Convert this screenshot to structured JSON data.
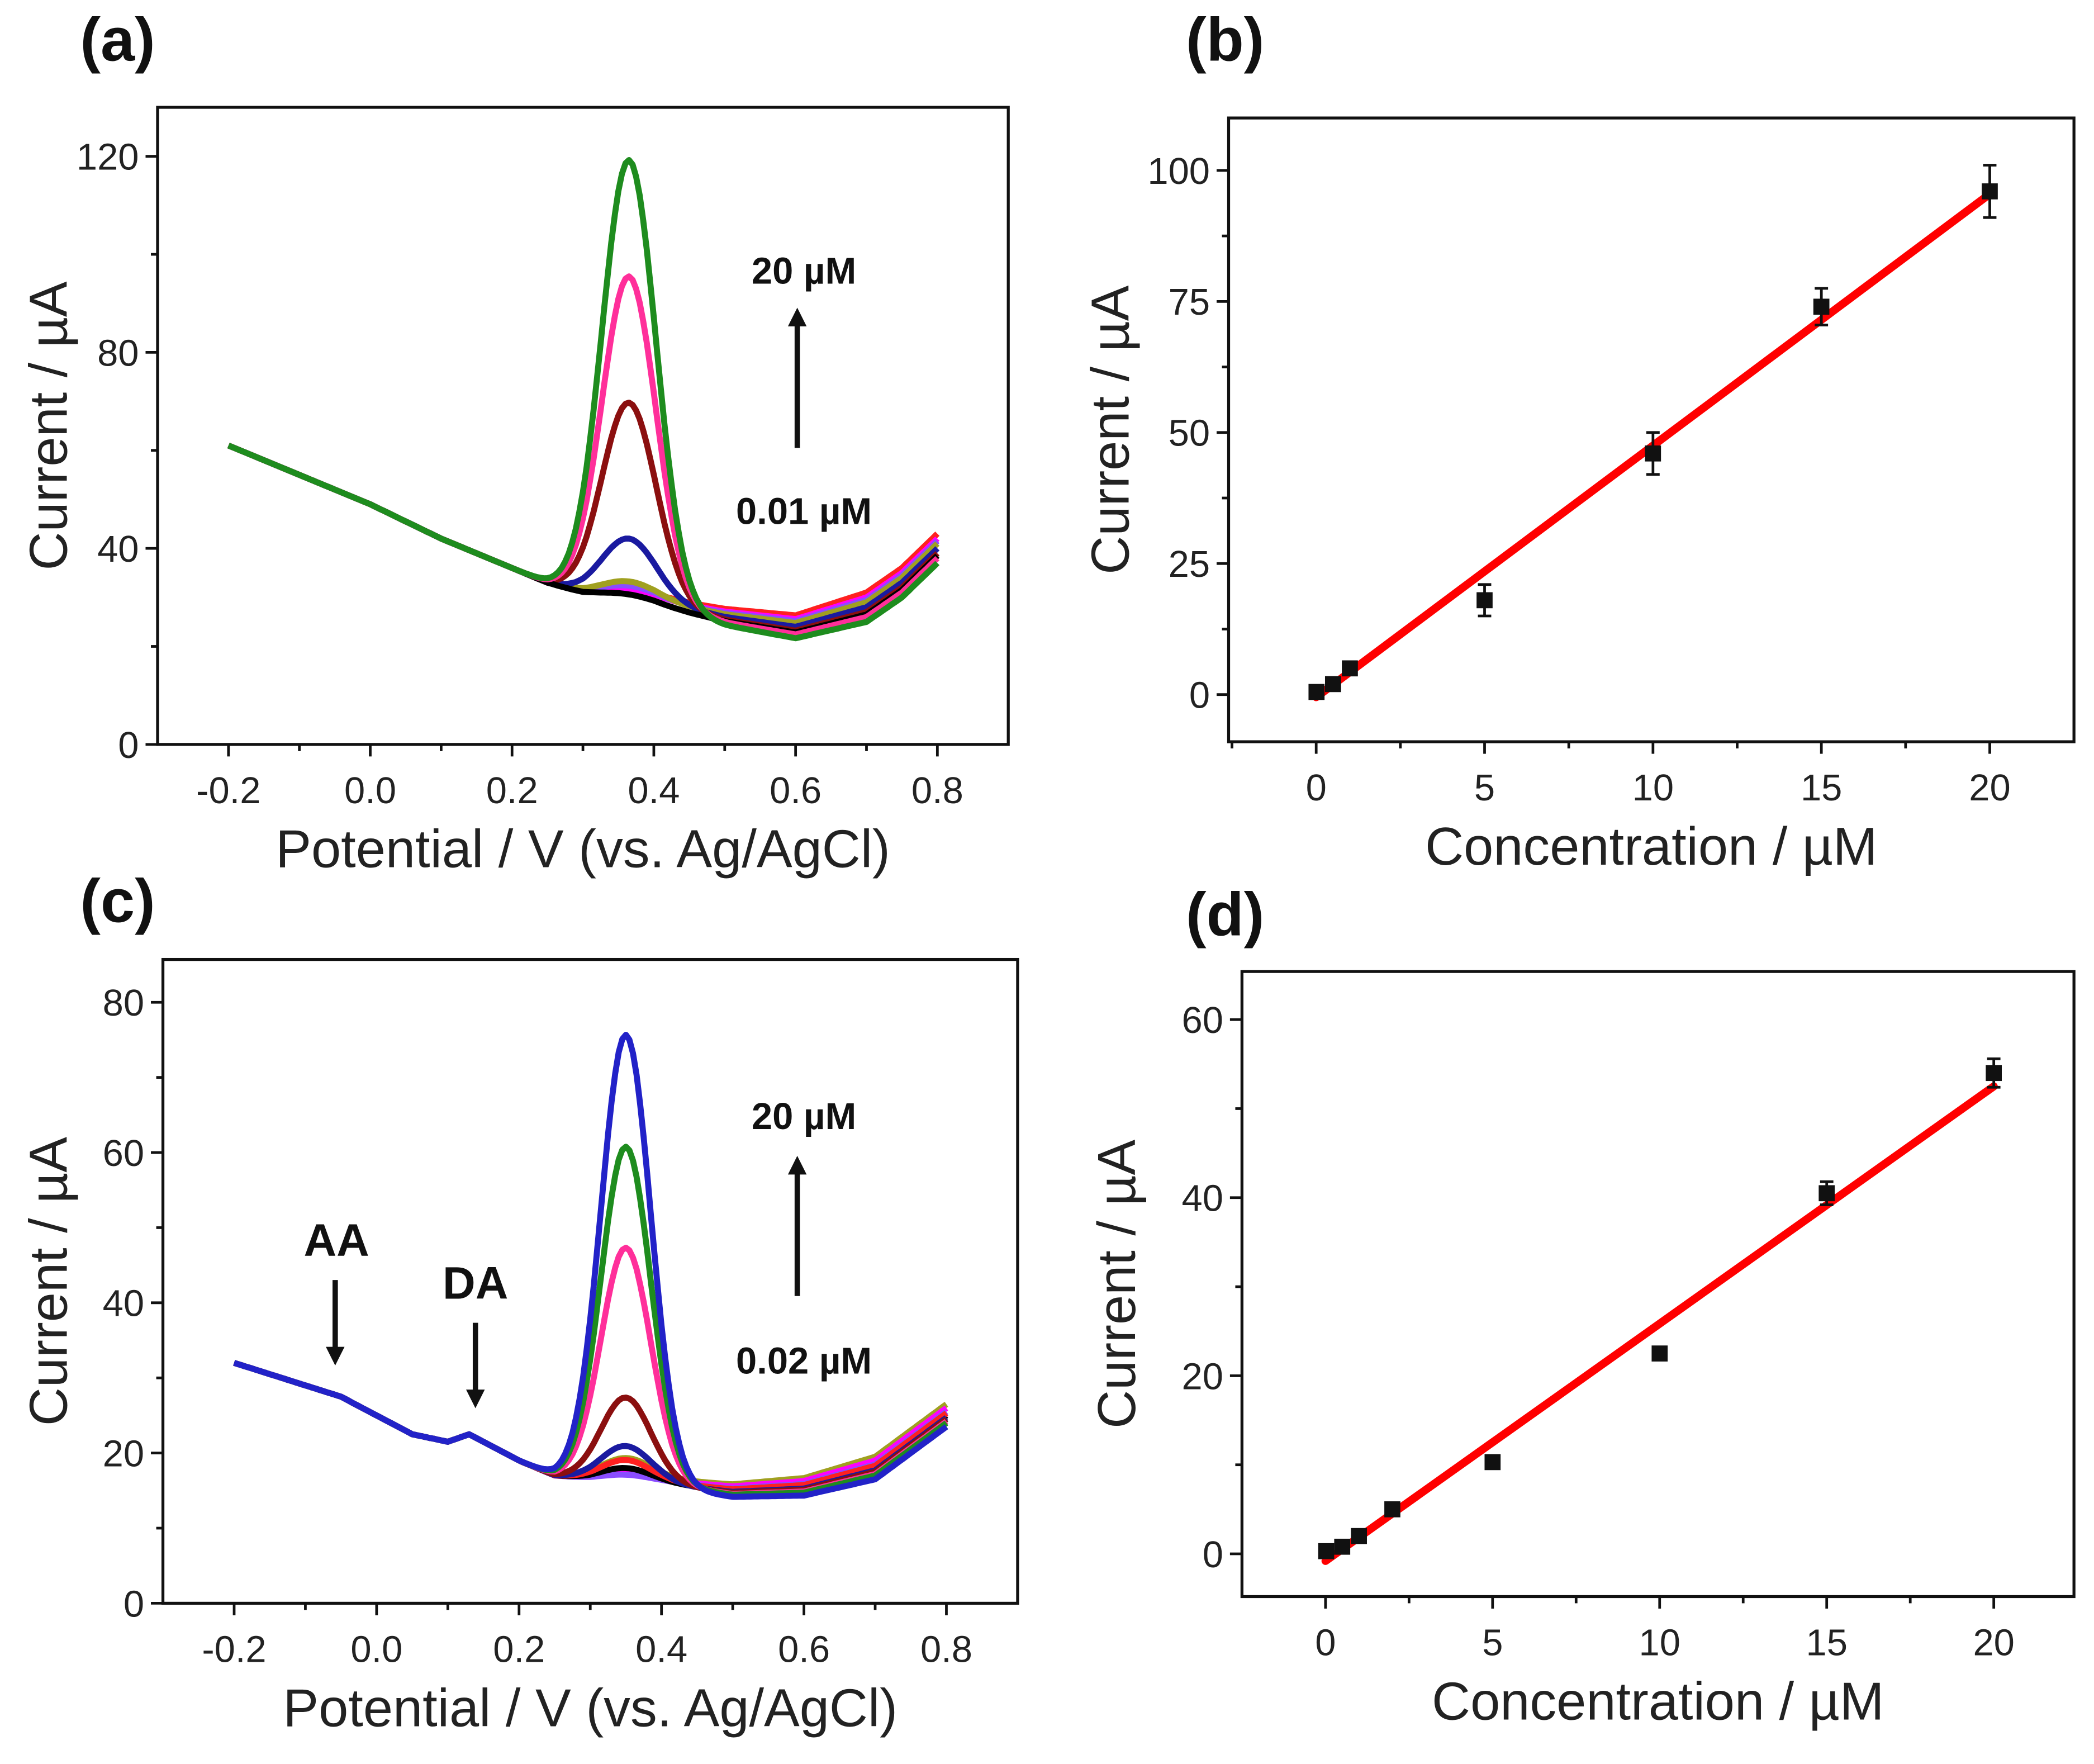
{
  "chart_data": [
    {
      "id": "a",
      "panel_label": "(a)",
      "type": "line",
      "xlabel": "Potential / V (vs. Ag/AgCl)",
      "ylabel": "Current / µA",
      "xlim": [
        -0.3,
        0.9
      ],
      "ylim": [
        0,
        130
      ],
      "xticks": [
        -0.2,
        0.0,
        0.2,
        0.4,
        0.6,
        0.8
      ],
      "xtick_labels": [
        "-0.2",
        "0.0",
        "0.2",
        "0.4",
        "0.6",
        "0.8"
      ],
      "yticks": [
        0,
        40,
        80,
        120
      ],
      "ytick_labels": [
        "0",
        "40",
        "80",
        "120"
      ],
      "baseline": {
        "x": [
          -0.2,
          -0.1,
          0.0,
          0.1,
          0.2,
          0.25,
          0.3,
          0.4,
          0.5,
          0.6,
          0.7,
          0.75,
          0.8
        ],
        "y": [
          61,
          55,
          49,
          42,
          36,
          33,
          31,
          29,
          26,
          24,
          28,
          33,
          40
        ]
      },
      "peak_x": 0.365,
      "peak_width": 0.038,
      "series": [
        {
          "color": "#ff2020",
          "peak_y": 31,
          "offset": 3
        },
        {
          "color": "#ff00ff",
          "peak_y": 31,
          "offset": 2
        },
        {
          "color": "#8a4dff",
          "peak_y": 32,
          "offset": 1.5
        },
        {
          "color": "#a0a020",
          "peak_y": 33,
          "offset": 1
        },
        {
          "color": "#1a1aa0",
          "peak_y": 42,
          "offset": 0
        },
        {
          "color": "#8b0f0f",
          "peak_y": 70,
          "offset": -1
        },
        {
          "color": "#000000",
          "peak_y": 31,
          "offset": -1.5
        },
        {
          "color": "#ff2f9a",
          "peak_y": 96,
          "offset": -2
        },
        {
          "color": "#1e8c1e",
          "peak_y": 120,
          "offset": -3
        }
      ],
      "annotations": {
        "high": "20 µM",
        "low": "0.01 µM"
      }
    },
    {
      "id": "b",
      "panel_label": "(b)",
      "type": "scatter",
      "xlabel": "Concentration / µM",
      "ylabel": "Current / µA",
      "xlim": [
        -2.6,
        22.5
      ],
      "ylim": [
        -9,
        110
      ],
      "xticks": [
        0,
        5,
        10,
        15,
        20
      ],
      "xtick_labels": [
        "0",
        "5",
        "10",
        "15",
        "20"
      ],
      "yticks": [
        0,
        25,
        50,
        75,
        100
      ],
      "ytick_labels": [
        "0",
        "25",
        "50",
        "75",
        "100"
      ],
      "x": [
        0.01,
        0.5,
        1,
        5,
        10,
        15,
        20
      ],
      "y": [
        0.5,
        2,
        5,
        18,
        46,
        74,
        96
      ],
      "yerr": [
        1,
        1,
        1,
        3,
        4,
        3.5,
        5
      ],
      "fit": {
        "color": "#ff0000",
        "x": [
          0,
          20
        ],
        "y": [
          -0.5,
          95.5
        ]
      }
    },
    {
      "id": "c",
      "panel_label": "(c)",
      "type": "line",
      "xlabel": "Potential / V (vs. Ag/AgCl)",
      "ylabel": "Current / µA",
      "xlim": [
        -0.3,
        0.9
      ],
      "ylim": [
        0,
        85.7
      ],
      "xticks": [
        -0.2,
        0.0,
        0.2,
        0.4,
        0.6,
        0.8
      ],
      "xtick_labels": [
        "-0.2",
        "0.0",
        "0.2",
        "0.4",
        "0.6",
        "0.8"
      ],
      "yticks": [
        0,
        20,
        40,
        60,
        80
      ],
      "ytick_labels": [
        "0",
        "20",
        "40",
        "60",
        "80"
      ],
      "baseline": {
        "x": [
          -0.2,
          -0.1,
          -0.05,
          0.0,
          0.05,
          0.1,
          0.13,
          0.17,
          0.2,
          0.25,
          0.3,
          0.4,
          0.5,
          0.6,
          0.7,
          0.8
        ],
        "y": [
          32,
          29,
          27.5,
          25,
          22.5,
          21.5,
          22.5,
          20.5,
          19,
          17,
          16.5,
          16,
          15,
          15.5,
          18,
          25
        ]
      },
      "peak_x": 0.35,
      "peak_width": 0.035,
      "series": [
        {
          "color": "#a0a020",
          "peak_y": 19,
          "offset": 1.5
        },
        {
          "color": "#ff00ff",
          "peak_y": 17,
          "offset": 1
        },
        {
          "color": "#8a4dff",
          "peak_y": 17,
          "offset": 0.5
        },
        {
          "color": "#000000",
          "peak_y": 18,
          "offset": 0
        },
        {
          "color": "#ff2020",
          "peak_y": 19,
          "offset": 0.3
        },
        {
          "color": "#1a1aa0",
          "peak_y": 21,
          "offset": -0.3
        },
        {
          "color": "#8b0f0f",
          "peak_y": 27.5,
          "offset": -0.5
        },
        {
          "color": "#ff2f9a",
          "peak_y": 47.5,
          "offset": -0.8
        },
        {
          "color": "#1e8c1e",
          "peak_y": 61,
          "offset": -1
        },
        {
          "color": "#2222c8",
          "peak_y": 76,
          "offset": -1.5
        }
      ],
      "annotations": {
        "high": "20 µM",
        "low": "0.02 µM",
        "aa": "AA",
        "da": "DA"
      }
    },
    {
      "id": "d",
      "panel_label": "(d)",
      "type": "scatter",
      "xlabel": "Concentration / µM",
      "ylabel": "Current / µA",
      "xlim": [
        -2.5,
        22.4
      ],
      "ylim": [
        -4.8,
        65.4
      ],
      "xticks": [
        0,
        5,
        10,
        15,
        20
      ],
      "xtick_labels": [
        "0",
        "5",
        "10",
        "15",
        "20"
      ],
      "yticks": [
        0,
        20,
        40,
        60
      ],
      "ytick_labels": [
        "0",
        "20",
        "40",
        "60"
      ],
      "x": [
        0.02,
        0.5,
        1,
        2,
        5,
        10,
        15,
        20
      ],
      "y": [
        0.3,
        0.8,
        2,
        5,
        10.3,
        22.5,
        40.5,
        54
      ],
      "yerr": [
        0.5,
        0.5,
        0.5,
        0.5,
        0.6,
        0.7,
        1.3,
        1.6
      ],
      "fit": {
        "color": "#ff0000",
        "x": [
          0,
          20
        ],
        "y": [
          -0.8,
          52.5
        ]
      }
    }
  ]
}
